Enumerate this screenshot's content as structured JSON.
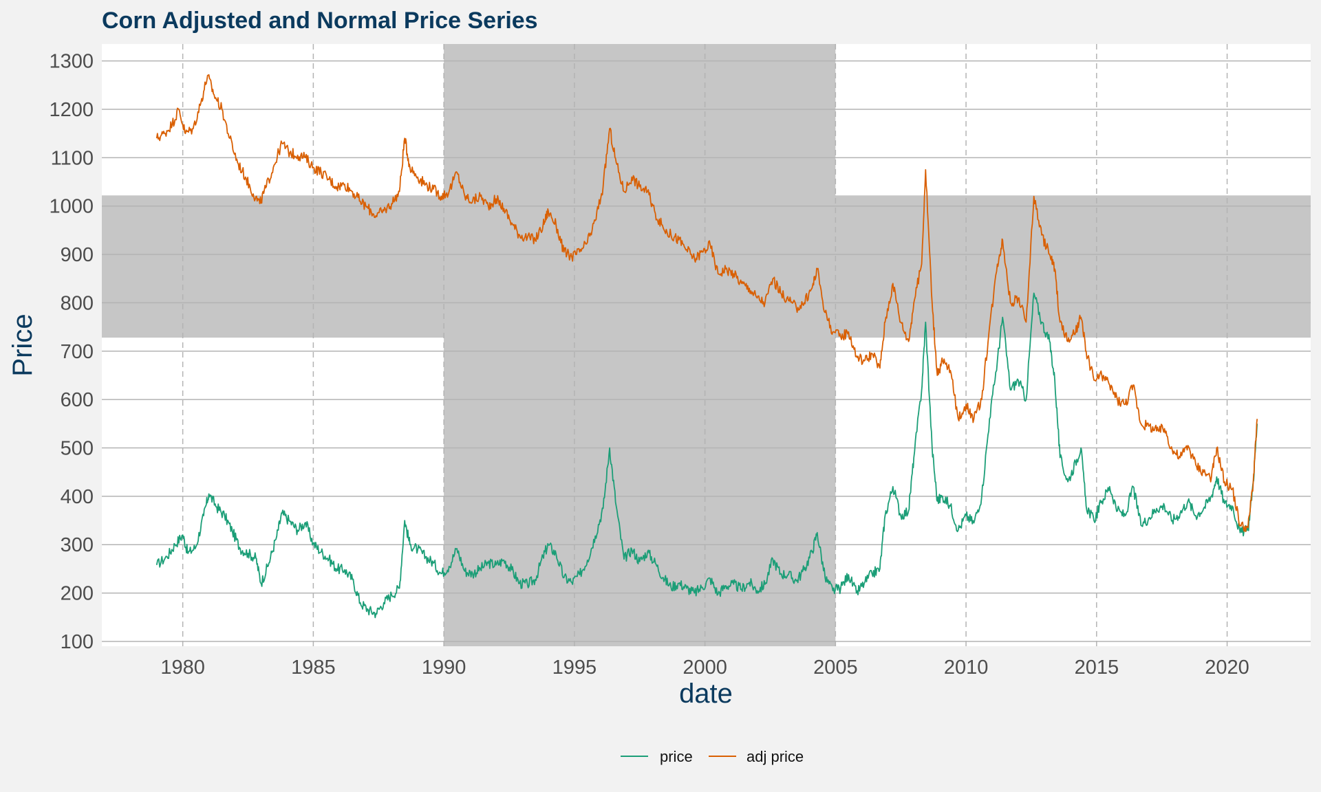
{
  "chart_data": {
    "type": "line",
    "title": "Corn Adjusted and Normal Price Series",
    "xlabel": "date",
    "ylabel": "Price",
    "xlim": [
      1976.9,
      2023.2
    ],
    "ylim": [
      90,
      1335
    ],
    "x_ticks": [
      1980,
      1985,
      1990,
      1995,
      2000,
      2005,
      2010,
      2015,
      2020
    ],
    "y_ticks": [
      100,
      200,
      300,
      400,
      500,
      600,
      700,
      800,
      900,
      1000,
      1100,
      1200,
      1300
    ],
    "grid": true,
    "legend_position": "bottom",
    "shaded_regions": [
      {
        "axis": "x",
        "from": 1990,
        "to": 2005
      },
      {
        "axis": "y",
        "from": 728,
        "to": 1022
      }
    ],
    "series": [
      {
        "name": "price",
        "color": "#1b9e77",
        "points": [
          [
            1979.0,
            258
          ],
          [
            1979.4,
            275
          ],
          [
            1979.7,
            300
          ],
          [
            1980.0,
            320
          ],
          [
            1980.2,
            282
          ],
          [
            1980.5,
            295
          ],
          [
            1980.8,
            360
          ],
          [
            1981.0,
            405
          ],
          [
            1981.3,
            378
          ],
          [
            1981.6,
            360
          ],
          [
            1981.9,
            328
          ],
          [
            1982.2,
            292
          ],
          [
            1982.5,
            282
          ],
          [
            1982.8,
            272
          ],
          [
            1983.0,
            220
          ],
          [
            1983.3,
            262
          ],
          [
            1983.6,
            318
          ],
          [
            1983.8,
            365
          ],
          [
            1984.1,
            348
          ],
          [
            1984.4,
            330
          ],
          [
            1984.7,
            346
          ],
          [
            1985.0,
            302
          ],
          [
            1985.3,
            285
          ],
          [
            1985.6,
            270
          ],
          [
            1985.9,
            250
          ],
          [
            1986.2,
            248
          ],
          [
            1986.5,
            228
          ],
          [
            1986.8,
            180
          ],
          [
            1987.1,
            165
          ],
          [
            1987.4,
            158
          ],
          [
            1987.7,
            180
          ],
          [
            1988.0,
            196
          ],
          [
            1988.3,
            210
          ],
          [
            1988.5,
            350
          ],
          [
            1988.7,
            300
          ],
          [
            1989.0,
            290
          ],
          [
            1989.3,
            275
          ],
          [
            1989.6,
            262
          ],
          [
            1989.9,
            240
          ],
          [
            1990.2,
            255
          ],
          [
            1990.5,
            292
          ],
          [
            1990.8,
            245
          ],
          [
            1991.1,
            240
          ],
          [
            1991.4,
            250
          ],
          [
            1991.7,
            262
          ],
          [
            1992.0,
            258
          ],
          [
            1992.3,
            268
          ],
          [
            1992.6,
            248
          ],
          [
            1992.9,
            220
          ],
          [
            1993.2,
            218
          ],
          [
            1993.5,
            228
          ],
          [
            1993.8,
            275
          ],
          [
            1994.0,
            300
          ],
          [
            1994.3,
            280
          ],
          [
            1994.6,
            232
          ],
          [
            1994.9,
            222
          ],
          [
            1995.2,
            238
          ],
          [
            1995.5,
            268
          ],
          [
            1995.8,
            318
          ],
          [
            1996.1,
            375
          ],
          [
            1996.35,
            500
          ],
          [
            1996.6,
            380
          ],
          [
            1996.9,
            270
          ],
          [
            1997.2,
            290
          ],
          [
            1997.5,
            265
          ],
          [
            1997.8,
            285
          ],
          [
            1998.1,
            262
          ],
          [
            1998.4,
            232
          ],
          [
            1998.7,
            212
          ],
          [
            1999.0,
            220
          ],
          [
            1999.3,
            210
          ],
          [
            1999.6,
            200
          ],
          [
            1999.9,
            212
          ],
          [
            2000.2,
            230
          ],
          [
            2000.5,
            198
          ],
          [
            2000.8,
            215
          ],
          [
            2001.1,
            218
          ],
          [
            2001.4,
            208
          ],
          [
            2001.7,
            222
          ],
          [
            2002.0,
            205
          ],
          [
            2002.3,
            218
          ],
          [
            2002.6,
            270
          ],
          [
            2002.9,
            240
          ],
          [
            2003.2,
            238
          ],
          [
            2003.5,
            225
          ],
          [
            2003.8,
            248
          ],
          [
            2004.1,
            285
          ],
          [
            2004.3,
            325
          ],
          [
            2004.6,
            232
          ],
          [
            2004.9,
            205
          ],
          [
            2005.2,
            210
          ],
          [
            2005.5,
            238
          ],
          [
            2005.8,
            200
          ],
          [
            2006.1,
            220
          ],
          [
            2006.4,
            240
          ],
          [
            2006.7,
            250
          ],
          [
            2006.9,
            360
          ],
          [
            2007.2,
            420
          ],
          [
            2007.5,
            360
          ],
          [
            2007.8,
            370
          ],
          [
            2008.0,
            480
          ],
          [
            2008.3,
            620
          ],
          [
            2008.45,
            760
          ],
          [
            2008.7,
            500
          ],
          [
            2008.9,
            390
          ],
          [
            2009.1,
            400
          ],
          [
            2009.4,
            380
          ],
          [
            2009.7,
            330
          ],
          [
            2010.0,
            360
          ],
          [
            2010.3,
            345
          ],
          [
            2010.6,
            400
          ],
          [
            2010.9,
            560
          ],
          [
            2011.2,
            680
          ],
          [
            2011.4,
            770
          ],
          [
            2011.7,
            620
          ],
          [
            2012.0,
            640
          ],
          [
            2012.3,
            600
          ],
          [
            2012.6,
            820
          ],
          [
            2012.9,
            760
          ],
          [
            2013.2,
            720
          ],
          [
            2013.4,
            640
          ],
          [
            2013.6,
            480
          ],
          [
            2013.9,
            430
          ],
          [
            2014.2,
            470
          ],
          [
            2014.4,
            500
          ],
          [
            2014.6,
            380
          ],
          [
            2014.9,
            350
          ],
          [
            2015.2,
            390
          ],
          [
            2015.5,
            420
          ],
          [
            2015.8,
            370
          ],
          [
            2016.1,
            360
          ],
          [
            2016.4,
            420
          ],
          [
            2016.7,
            340
          ],
          [
            2017.0,
            355
          ],
          [
            2017.3,
            375
          ],
          [
            2017.6,
            380
          ],
          [
            2017.9,
            350
          ],
          [
            2018.2,
            365
          ],
          [
            2018.5,
            390
          ],
          [
            2018.8,
            360
          ],
          [
            2019.1,
            375
          ],
          [
            2019.4,
            400
          ],
          [
            2019.6,
            440
          ],
          [
            2019.9,
            385
          ],
          [
            2020.2,
            380
          ],
          [
            2020.5,
            325
          ],
          [
            2020.8,
            330
          ],
          [
            2021.0,
            430
          ],
          [
            2021.15,
            550
          ]
        ]
      },
      {
        "name": "adj price",
        "color": "#d95f02",
        "points": [
          [
            1979.0,
            1140
          ],
          [
            1979.3,
            1150
          ],
          [
            1979.6,
            1170
          ],
          [
            1979.85,
            1200
          ],
          [
            1980.1,
            1150
          ],
          [
            1980.4,
            1160
          ],
          [
            1980.7,
            1215
          ],
          [
            1980.95,
            1270
          ],
          [
            1981.2,
            1230
          ],
          [
            1981.5,
            1200
          ],
          [
            1981.8,
            1140
          ],
          [
            1982.1,
            1090
          ],
          [
            1982.4,
            1060
          ],
          [
            1982.7,
            1025
          ],
          [
            1982.95,
            1005
          ],
          [
            1983.2,
            1040
          ],
          [
            1983.5,
            1085
          ],
          [
            1983.8,
            1130
          ],
          [
            1984.1,
            1110
          ],
          [
            1984.4,
            1105
          ],
          [
            1984.7,
            1100
          ],
          [
            1985.0,
            1080
          ],
          [
            1985.3,
            1070
          ],
          [
            1985.6,
            1055
          ],
          [
            1985.9,
            1040
          ],
          [
            1986.2,
            1045
          ],
          [
            1986.5,
            1030
          ],
          [
            1986.8,
            1010
          ],
          [
            1987.1,
            995
          ],
          [
            1987.4,
            980
          ],
          [
            1987.7,
            990
          ],
          [
            1988.0,
            1005
          ],
          [
            1988.3,
            1030
          ],
          [
            1988.5,
            1140
          ],
          [
            1988.7,
            1080
          ],
          [
            1989.0,
            1060
          ],
          [
            1989.3,
            1045
          ],
          [
            1989.6,
            1035
          ],
          [
            1989.9,
            1020
          ],
          [
            1990.2,
            1030
          ],
          [
            1990.5,
            1070
          ],
          [
            1990.8,
            1020
          ],
          [
            1991.1,
            1010
          ],
          [
            1991.4,
            1020
          ],
          [
            1991.7,
            1000
          ],
          [
            1992.0,
            1015
          ],
          [
            1992.3,
            995
          ],
          [
            1992.6,
            965
          ],
          [
            1992.9,
            940
          ],
          [
            1993.2,
            935
          ],
          [
            1993.5,
            930
          ],
          [
            1993.8,
            960
          ],
          [
            1994.0,
            990
          ],
          [
            1994.3,
            960
          ],
          [
            1994.6,
            905
          ],
          [
            1994.9,
            895
          ],
          [
            1995.2,
            905
          ],
          [
            1995.5,
            925
          ],
          [
            1995.8,
            970
          ],
          [
            1996.1,
            1040
          ],
          [
            1996.35,
            1160
          ],
          [
            1996.6,
            1090
          ],
          [
            1996.9,
            1030
          ],
          [
            1997.2,
            1060
          ],
          [
            1997.5,
            1040
          ],
          [
            1997.8,
            1030
          ],
          [
            1998.1,
            985
          ],
          [
            1998.4,
            955
          ],
          [
            1998.7,
            940
          ],
          [
            1999.0,
            930
          ],
          [
            1999.3,
            910
          ],
          [
            1999.6,
            890
          ],
          [
            1999.9,
            905
          ],
          [
            2000.2,
            920
          ],
          [
            2000.5,
            860
          ],
          [
            2000.8,
            870
          ],
          [
            2001.1,
            860
          ],
          [
            2001.4,
            840
          ],
          [
            2001.7,
            830
          ],
          [
            2002.0,
            810
          ],
          [
            2002.3,
            800
          ],
          [
            2002.6,
            850
          ],
          [
            2002.9,
            820
          ],
          [
            2003.2,
            805
          ],
          [
            2003.5,
            790
          ],
          [
            2003.8,
            800
          ],
          [
            2004.1,
            830
          ],
          [
            2004.3,
            870
          ],
          [
            2004.6,
            780
          ],
          [
            2004.9,
            740
          ],
          [
            2005.2,
            730
          ],
          [
            2005.5,
            740
          ],
          [
            2005.8,
            690
          ],
          [
            2006.1,
            680
          ],
          [
            2006.4,
            695
          ],
          [
            2006.7,
            665
          ],
          [
            2006.9,
            760
          ],
          [
            2007.2,
            840
          ],
          [
            2007.5,
            760
          ],
          [
            2007.8,
            720
          ],
          [
            2008.0,
            800
          ],
          [
            2008.3,
            880
          ],
          [
            2008.45,
            1075
          ],
          [
            2008.7,
            800
          ],
          [
            2008.9,
            650
          ],
          [
            2009.1,
            680
          ],
          [
            2009.4,
            660
          ],
          [
            2009.7,
            560
          ],
          [
            2010.0,
            590
          ],
          [
            2010.3,
            560
          ],
          [
            2010.6,
            600
          ],
          [
            2010.9,
            750
          ],
          [
            2011.2,
            880
          ],
          [
            2011.4,
            930
          ],
          [
            2011.7,
            800
          ],
          [
            2012.0,
            810
          ],
          [
            2012.3,
            760
          ],
          [
            2012.6,
            1020
          ],
          [
            2012.9,
            940
          ],
          [
            2013.2,
            900
          ],
          [
            2013.4,
            870
          ],
          [
            2013.6,
            760
          ],
          [
            2013.9,
            720
          ],
          [
            2014.2,
            740
          ],
          [
            2014.4,
            770
          ],
          [
            2014.6,
            700
          ],
          [
            2014.9,
            640
          ],
          [
            2015.2,
            650
          ],
          [
            2015.5,
            630
          ],
          [
            2015.8,
            600
          ],
          [
            2016.1,
            590
          ],
          [
            2016.4,
            630
          ],
          [
            2016.7,
            550
          ],
          [
            2017.0,
            545
          ],
          [
            2017.3,
            535
          ],
          [
            2017.6,
            540
          ],
          [
            2017.9,
            495
          ],
          [
            2018.2,
            480
          ],
          [
            2018.5,
            505
          ],
          [
            2018.8,
            465
          ],
          [
            2019.1,
            450
          ],
          [
            2019.4,
            440
          ],
          [
            2019.6,
            500
          ],
          [
            2019.9,
            430
          ],
          [
            2020.2,
            415
          ],
          [
            2020.5,
            340
          ],
          [
            2020.8,
            335
          ],
          [
            2021.0,
            430
          ],
          [
            2021.15,
            560
          ]
        ]
      }
    ]
  }
}
